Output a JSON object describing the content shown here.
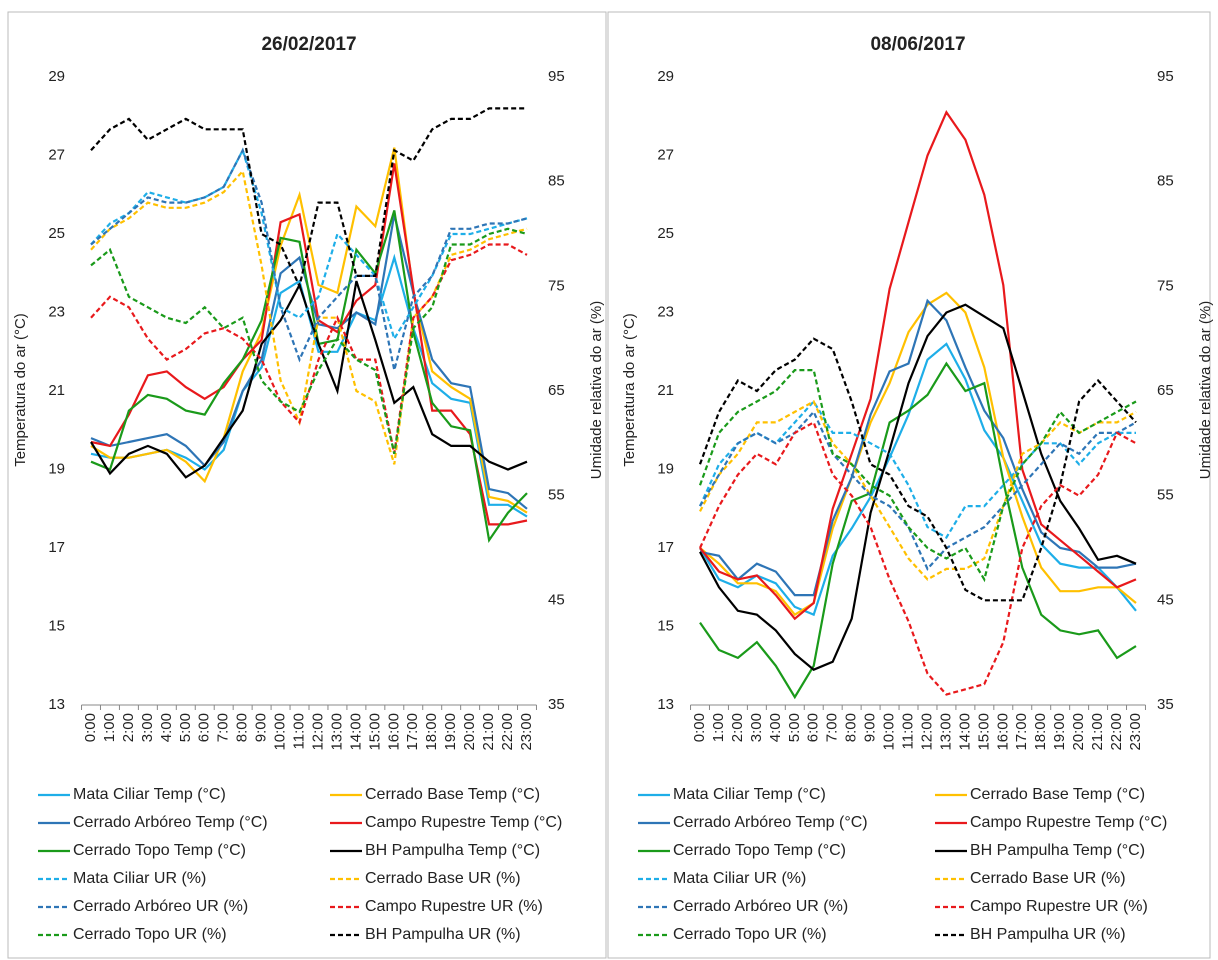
{
  "chart_data": [
    {
      "type": "line",
      "title": "26/02/2017",
      "y_label": "Temperatura do ar (°C)",
      "y2_label": "Umidade relativa do ar (%)",
      "categories": [
        "0:00",
        "1:00",
        "2:00",
        "3:00",
        "4:00",
        "5:00",
        "6:00",
        "7:00",
        "8:00",
        "9:00",
        "10:00",
        "11:00",
        "12:00",
        "13:00",
        "14:00",
        "15:00",
        "16:00",
        "17:00",
        "18:00",
        "19:00",
        "20:00",
        "21:00",
        "22:00",
        "23:00"
      ],
      "ylim": [
        13,
        29
      ],
      "yticks": [
        13,
        15,
        17,
        19,
        21,
        23,
        25,
        27,
        29
      ],
      "y2lim": [
        35,
        95
      ],
      "y2ticks": [
        35,
        45,
        55,
        65,
        75,
        85,
        95
      ],
      "series": [
        {
          "name": "Mata Ciliar Temp (°C)",
          "color": "#1eaee8",
          "line_style": "solid",
          "values": [
            19.4,
            19.3,
            19.3,
            19.4,
            19.5,
            19.3,
            19.0,
            19.5,
            21.0,
            21.6,
            23.5,
            23.8,
            22.0,
            22.0,
            23.0,
            22.8,
            24.4,
            22.6,
            21.2,
            20.8,
            20.7,
            18.1,
            18.1,
            17.8
          ]
        },
        {
          "name": "Cerrado Base Temp (°C)",
          "color": "#ffc000",
          "line_style": "solid",
          "values": [
            19.6,
            19.3,
            19.3,
            19.4,
            19.5,
            19.2,
            18.7,
            19.8,
            21.5,
            22.5,
            24.7,
            26.0,
            23.7,
            23.5,
            25.7,
            25.2,
            27.2,
            23.5,
            21.5,
            21.1,
            20.8,
            18.3,
            18.2,
            17.9
          ]
        },
        {
          "name": "Cerrado Arbóreo Temp (°C)",
          "color": "#2e75b6",
          "line_style": "solid",
          "values": [
            19.8,
            19.6,
            19.7,
            19.8,
            19.9,
            19.6,
            19.1,
            19.7,
            21.0,
            21.8,
            24.0,
            24.4,
            22.7,
            22.6,
            23.0,
            22.7,
            25.5,
            23.5,
            21.8,
            21.2,
            21.1,
            18.5,
            18.4,
            18.0
          ]
        },
        {
          "name": "Campo Rupestre Temp (°C)",
          "color": "#e8191c",
          "line_style": "solid",
          "values": [
            19.7,
            19.6,
            20.4,
            21.4,
            21.5,
            21.1,
            20.8,
            21.1,
            21.8,
            22.3,
            25.3,
            25.5,
            22.8,
            22.5,
            23.3,
            23.7,
            26.8,
            23.6,
            20.5,
            20.5,
            19.9,
            17.6,
            17.6,
            17.7
          ]
        },
        {
          "name": "Cerrado Topo Temp (°C)",
          "color": "#1a9a1a",
          "line_style": "solid",
          "values": [
            19.2,
            19.0,
            20.5,
            20.9,
            20.8,
            20.5,
            20.4,
            21.2,
            21.8,
            22.8,
            24.9,
            24.8,
            22.2,
            22.3,
            24.6,
            24.0,
            25.6,
            22.5,
            20.7,
            20.1,
            20.0,
            17.2,
            17.9,
            18.4
          ]
        },
        {
          "name": "BH Pampulha Temp (°C)",
          "color": "#000000",
          "line_style": "solid",
          "values": [
            19.7,
            18.9,
            19.4,
            19.6,
            19.4,
            18.8,
            19.1,
            19.8,
            20.5,
            22.2,
            22.8,
            23.7,
            22.2,
            21.0,
            23.8,
            22.3,
            20.7,
            21.1,
            19.9,
            19.6,
            19.6,
            19.2,
            19.0,
            19.2
          ]
        },
        {
          "name": "Mata Ciliar UR (%)",
          "color": "#1eaee8",
          "line_style": "dashed",
          "axis": "y2",
          "values": [
            79,
            81,
            82,
            84,
            83.5,
            83,
            83.5,
            84.5,
            88,
            82,
            73,
            72,
            74,
            80,
            78,
            76,
            70,
            73,
            76,
            80,
            80,
            80.5,
            81,
            81.5
          ]
        },
        {
          "name": "Cerrado Base UR (%)",
          "color": "#ffc000",
          "line_style": "dashed",
          "axis": "y2",
          "values": [
            78.5,
            80.5,
            81.5,
            83,
            82.5,
            82.5,
            83,
            84,
            86,
            77,
            66,
            62,
            72,
            72,
            65,
            64,
            58,
            72,
            74,
            78,
            78.5,
            79.5,
            80,
            80.5
          ]
        },
        {
          "name": "Cerrado Arbóreo UR (%)",
          "color": "#2e75b6",
          "line_style": "dashed",
          "axis": "y2",
          "values": [
            79,
            80.5,
            82,
            83.5,
            83,
            83,
            83.5,
            84.5,
            88,
            83,
            73,
            68,
            72,
            74,
            76,
            76,
            67,
            74,
            76,
            80.5,
            80.5,
            81,
            81,
            81.5
          ]
        },
        {
          "name": "Campo Rupestre UR (%)",
          "color": "#e8191c",
          "line_style": "dashed",
          "axis": "y2",
          "values": [
            72,
            74,
            73,
            70,
            68,
            69,
            70.5,
            71,
            70,
            68,
            64,
            62,
            68,
            72,
            68,
            68,
            59,
            72,
            74,
            77.5,
            78,
            79,
            79,
            78
          ]
        },
        {
          "name": "Cerrado Topo UR (%)",
          "color": "#1a9a1a",
          "line_style": "dashed",
          "axis": "y2",
          "values": [
            77,
            78.5,
            74,
            73,
            72,
            71.5,
            73,
            71,
            72,
            66,
            64,
            63,
            67,
            70,
            68,
            67,
            59,
            71,
            73,
            79,
            79,
            80,
            80.5,
            80
          ]
        },
        {
          "name": "BH Pampulha UR (%)",
          "color": "#000000",
          "line_style": "dashed",
          "axis": "y2",
          "values": [
            88,
            90,
            91,
            89,
            90,
            91,
            90,
            90,
            90,
            80,
            79,
            75,
            83,
            83,
            76,
            76,
            88,
            87,
            90,
            91,
            91,
            92,
            92,
            92
          ]
        }
      ]
    },
    {
      "type": "line",
      "title": "08/06/2017",
      "y_label": "Temperatura do ar (°C)",
      "y2_label": "Umidade relativa do ar (%)",
      "categories": [
        "0:00",
        "1:00",
        "2:00",
        "3:00",
        "4:00",
        "5:00",
        "6:00",
        "7:00",
        "8:00",
        "9:00",
        "10:00",
        "11:00",
        "12:00",
        "13:00",
        "14:00",
        "15:00",
        "16:00",
        "17:00",
        "18:00",
        "19:00",
        "20:00",
        "21:00",
        "22:00",
        "23:00"
      ],
      "ylim": [
        13,
        29
      ],
      "yticks": [
        13,
        15,
        17,
        19,
        21,
        23,
        25,
        27,
        29
      ],
      "y2lim": [
        35,
        95
      ],
      "y2ticks": [
        35,
        45,
        55,
        65,
        75,
        85,
        95
      ],
      "series": [
        {
          "name": "Mata Ciliar Temp (°C)",
          "color": "#1eaee8",
          "line_style": "solid",
          "values": [
            17.0,
            16.2,
            16.0,
            16.3,
            16.1,
            15.5,
            15.3,
            16.8,
            17.5,
            18.3,
            19.3,
            20.4,
            21.8,
            22.2,
            21.3,
            20.0,
            19.3,
            18.2,
            17.1,
            16.6,
            16.5,
            16.5,
            16.0,
            15.4
          ]
        },
        {
          "name": "Cerrado Base Temp (°C)",
          "color": "#ffc000",
          "line_style": "solid",
          "values": [
            17.0,
            16.6,
            16.1,
            16.1,
            15.9,
            15.3,
            15.6,
            17.5,
            18.8,
            20.2,
            21.2,
            22.5,
            23.2,
            23.5,
            23.0,
            21.6,
            19.3,
            17.8,
            16.5,
            15.9,
            15.9,
            16.0,
            16.0,
            15.6
          ]
        },
        {
          "name": "Cerrado Arbóreo Temp (°C)",
          "color": "#2e75b6",
          "line_style": "solid",
          "values": [
            16.9,
            16.8,
            16.2,
            16.6,
            16.4,
            15.8,
            15.8,
            17.7,
            18.8,
            20.4,
            21.5,
            21.7,
            23.3,
            22.8,
            21.6,
            20.5,
            19.8,
            18.5,
            17.4,
            17.0,
            16.9,
            16.5,
            16.5,
            16.6
          ]
        },
        {
          "name": "Campo Rupestre Temp (°C)",
          "color": "#e8191c",
          "line_style": "solid",
          "values": [
            17.0,
            16.4,
            16.2,
            16.3,
            15.8,
            15.2,
            15.6,
            18.0,
            19.4,
            20.8,
            23.6,
            25.3,
            27.0,
            28.1,
            27.4,
            26.0,
            23.7,
            19.0,
            17.6,
            17.2,
            16.8,
            16.4,
            16.0,
            16.2
          ]
        },
        {
          "name": "Cerrado Topo Temp (°C)",
          "color": "#1a9a1a",
          "line_style": "solid",
          "values": [
            15.1,
            14.4,
            14.2,
            14.6,
            14.0,
            13.2,
            14.0,
            16.6,
            18.2,
            18.4,
            20.2,
            20.5,
            20.9,
            21.7,
            21.0,
            21.2,
            18.7,
            16.5,
            15.3,
            14.9,
            14.8,
            14.9,
            14.2,
            14.5
          ]
        },
        {
          "name": "BH Pampulha Temp (°C)",
          "color": "#000000",
          "line_style": "solid",
          "values": [
            16.9,
            16.0,
            15.4,
            15.3,
            14.9,
            14.3,
            13.9,
            14.1,
            15.2,
            17.9,
            19.5,
            21.2,
            22.4,
            23.0,
            23.2,
            22.9,
            22.6,
            21.0,
            19.4,
            18.2,
            17.5,
            16.7,
            16.8,
            16.6
          ]
        },
        {
          "name": "Mata Ciliar UR (%)",
          "color": "#1eaee8",
          "line_style": "dashed",
          "axis": "y2",
          "values": [
            54,
            58,
            60,
            61,
            60,
            62,
            64,
            61,
            61,
            60,
            59,
            56,
            52,
            51,
            54,
            54,
            56,
            58,
            60,
            60,
            58,
            60,
            61,
            61
          ]
        },
        {
          "name": "Cerrado Base UR (%)",
          "color": "#ffc000",
          "line_style": "dashed",
          "axis": "y2",
          "values": [
            53.5,
            57,
            59,
            62,
            62,
            63,
            64,
            60,
            58,
            55,
            52,
            49,
            47,
            48,
            48,
            49,
            54,
            59,
            60,
            62,
            61,
            62,
            62,
            63
          ]
        },
        {
          "name": "Cerrado Arbóreo UR (%)",
          "color": "#2e75b6",
          "line_style": "dashed",
          "axis": "y2",
          "values": [
            54,
            57,
            60,
            61,
            60,
            61,
            63,
            59,
            57,
            55,
            54,
            52,
            48,
            50,
            51,
            52,
            54,
            56,
            58,
            60,
            59,
            61,
            61,
            62
          ]
        },
        {
          "name": "Campo Rupestre UR (%)",
          "color": "#e8191c",
          "line_style": "dashed",
          "axis": "y2",
          "values": [
            50,
            54,
            57,
            59,
            58,
            61,
            62,
            57,
            55,
            52,
            47,
            43,
            38,
            36,
            36.5,
            37,
            41,
            50,
            54,
            56,
            55,
            57,
            61,
            60
          ]
        },
        {
          "name": "Cerrado Topo UR (%)",
          "color": "#1a9a1a",
          "line_style": "dashed",
          "axis": "y2",
          "values": [
            56,
            61,
            63,
            64,
            65,
            67,
            67,
            59,
            58,
            56,
            55,
            52,
            50,
            49,
            50,
            47,
            54,
            58,
            60,
            63,
            61,
            62,
            63,
            64
          ]
        },
        {
          "name": "BH Pampulha UR (%)",
          "color": "#000000",
          "line_style": "dashed",
          "axis": "y2",
          "values": [
            58,
            63,
            66,
            65,
            67,
            68,
            70,
            69,
            64,
            58,
            57,
            54,
            53,
            50,
            46,
            45,
            45,
            45,
            50,
            56,
            64,
            66,
            64,
            62
          ]
        }
      ]
    }
  ]
}
